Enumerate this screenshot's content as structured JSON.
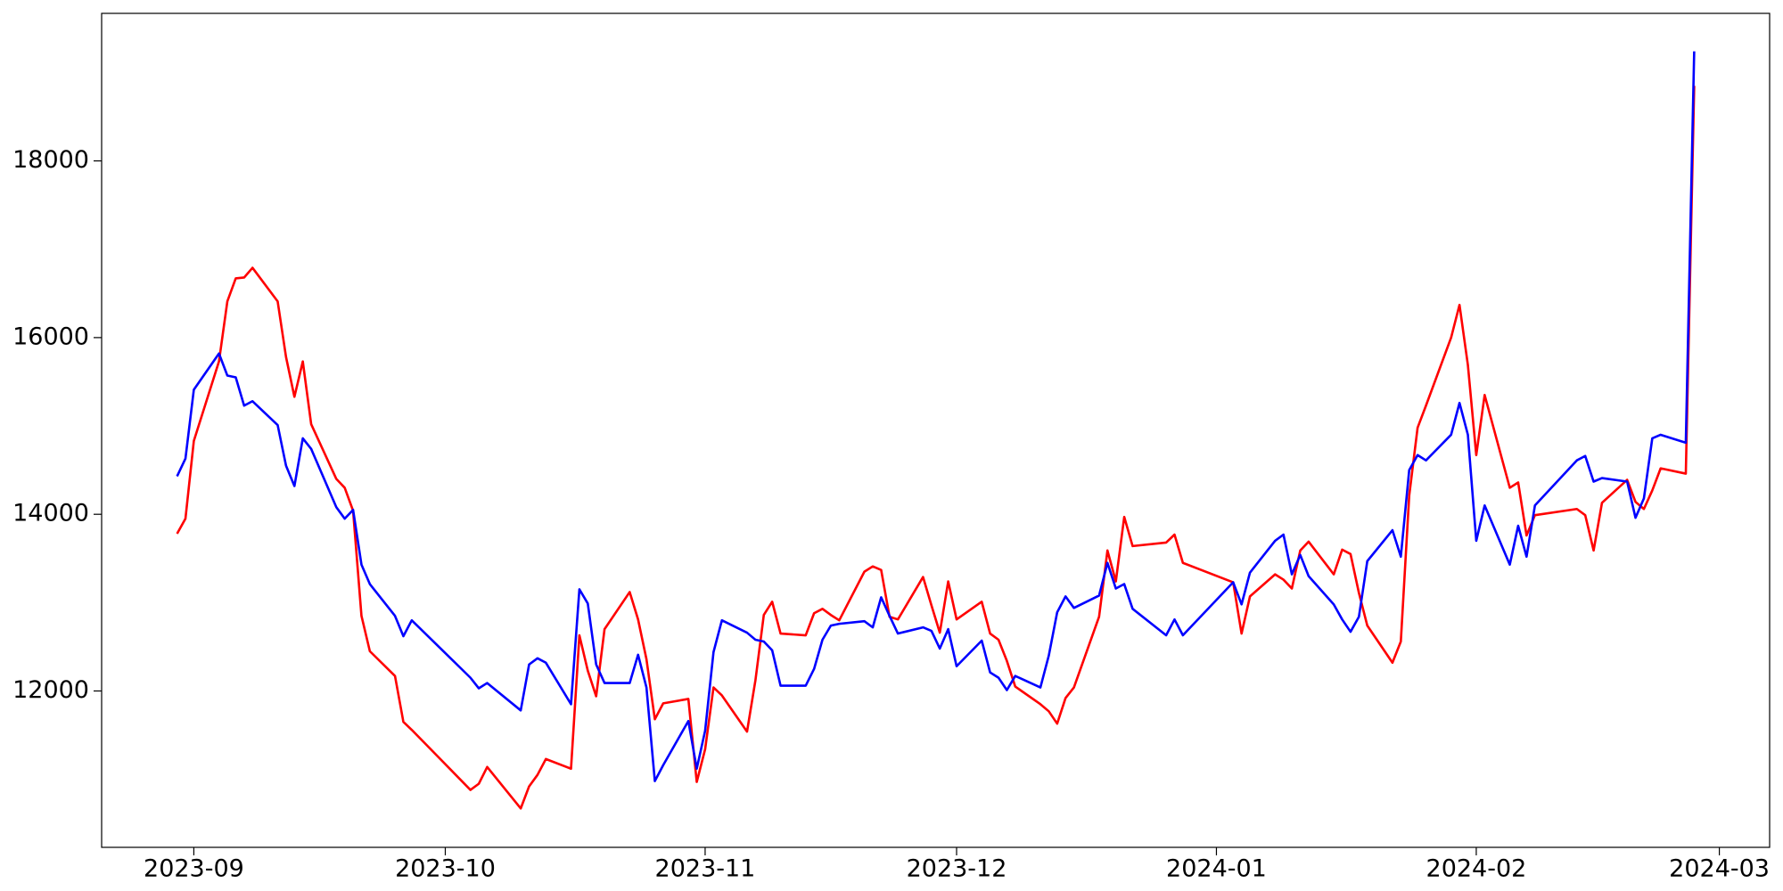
{
  "chart_data": {
    "type": "line",
    "x": [
      "2023-08-30",
      "2023-08-31",
      "2023-09-01",
      "2023-09-04",
      "2023-09-05",
      "2023-09-06",
      "2023-09-07",
      "2023-09-08",
      "2023-09-11",
      "2023-09-12",
      "2023-09-13",
      "2023-09-14",
      "2023-09-15",
      "2023-09-18",
      "2023-09-19",
      "2023-09-20",
      "2023-09-21",
      "2023-09-22",
      "2023-09-25",
      "2023-09-26",
      "2023-09-27",
      "2023-10-04",
      "2023-10-05",
      "2023-10-06",
      "2023-10-10",
      "2023-10-11",
      "2023-10-12",
      "2023-10-13",
      "2023-10-16",
      "2023-10-17",
      "2023-10-18",
      "2023-10-19",
      "2023-10-20",
      "2023-10-23",
      "2023-10-24",
      "2023-10-25",
      "2023-10-26",
      "2023-10-27",
      "2023-10-30",
      "2023-10-31",
      "2023-11-01",
      "2023-11-02",
      "2023-11-03",
      "2023-11-06",
      "2023-11-07",
      "2023-11-08",
      "2023-11-09",
      "2023-11-10",
      "2023-11-13",
      "2023-11-14",
      "2023-11-15",
      "2023-11-16",
      "2023-11-17",
      "2023-11-20",
      "2023-11-21",
      "2023-11-22",
      "2023-11-23",
      "2023-11-24",
      "2023-11-27",
      "2023-11-28",
      "2023-11-29",
      "2023-11-30",
      "2023-12-01",
      "2023-12-04",
      "2023-12-05",
      "2023-12-06",
      "2023-12-07",
      "2023-12-08",
      "2023-12-11",
      "2023-12-12",
      "2023-12-13",
      "2023-12-14",
      "2023-12-15",
      "2023-12-18",
      "2023-12-19",
      "2023-12-20",
      "2023-12-21",
      "2023-12-22",
      "2023-12-26",
      "2023-12-27",
      "2023-12-28",
      "2024-01-03",
      "2024-01-04",
      "2024-01-05",
      "2024-01-08",
      "2024-01-09",
      "2024-01-10",
      "2024-01-11",
      "2024-01-12",
      "2024-01-15",
      "2024-01-16",
      "2024-01-17",
      "2024-01-18",
      "2024-01-19",
      "2024-01-22",
      "2024-01-23",
      "2024-01-24",
      "2024-01-25",
      "2024-01-26",
      "2024-01-29",
      "2024-01-30",
      "2024-01-31",
      "2024-02-01",
      "2024-02-02",
      "2024-02-05",
      "2024-02-06",
      "2024-02-07",
      "2024-02-08",
      "2024-02-13",
      "2024-02-14",
      "2024-02-15",
      "2024-02-16",
      "2024-02-19",
      "2024-02-20",
      "2024-02-21",
      "2024-02-22",
      "2024-02-23",
      "2024-02-26",
      "2024-02-27"
    ],
    "series": [
      {
        "color": "#ff0000",
        "values": [
          13780,
          13950,
          14830,
          15730,
          16410,
          16670,
          16680,
          16790,
          16410,
          15780,
          15330,
          15730,
          15020,
          14400,
          14300,
          14040,
          12850,
          12450,
          12170,
          11650,
          11560,
          10880,
          10950,
          11140,
          10670,
          10920,
          11050,
          11230,
          11120,
          12630,
          12230,
          11940,
          12700,
          13120,
          12810,
          12360,
          11680,
          11860,
          11910,
          10970,
          11340,
          12040,
          11950,
          11540,
          12120,
          12860,
          13010,
          12650,
          12630,
          12880,
          12930,
          12860,
          12800,
          13350,
          13410,
          13370,
          12840,
          12810,
          13290,
          12970,
          12660,
          13240,
          12810,
          13010,
          12650,
          12580,
          12340,
          12050,
          11850,
          11770,
          11630,
          11920,
          12040,
          12840,
          13590,
          13240,
          13970,
          13640,
          13680,
          13770,
          13450,
          13230,
          12650,
          13070,
          13320,
          13260,
          13160,
          13590,
          13690,
          13320,
          13600,
          13550,
          13110,
          12740,
          12320,
          12560,
          14210,
          14980,
          15230,
          16000,
          16370,
          15690,
          14670,
          15350,
          14300,
          14360,
          13760,
          13990,
          14060,
          13990,
          13590,
          14130,
          14390,
          14140,
          14060,
          14270,
          14520,
          14460,
          18850
        ]
      },
      {
        "color": "#0000ff",
        "values": [
          14430,
          14630,
          15410,
          15820,
          15570,
          15550,
          15230,
          15280,
          15010,
          14550,
          14320,
          14860,
          14740,
          14080,
          13950,
          14050,
          13430,
          13210,
          12850,
          12620,
          12800,
          12150,
          12030,
          12090,
          11780,
          12300,
          12370,
          12320,
          11850,
          13150,
          12990,
          12300,
          12090,
          12090,
          12410,
          12040,
          10980,
          11160,
          11660,
          11120,
          11550,
          12440,
          12800,
          12660,
          12580,
          12560,
          12460,
          12060,
          12060,
          12250,
          12580,
          12740,
          12760,
          12790,
          12720,
          13060,
          12850,
          12650,
          12720,
          12680,
          12480,
          12700,
          12280,
          12570,
          12210,
          12150,
          12010,
          12170,
          12040,
          12400,
          12890,
          13070,
          12940,
          13080,
          13450,
          13160,
          13210,
          12930,
          12630,
          12810,
          12630,
          13230,
          12980,
          13340,
          13700,
          13770,
          13320,
          13540,
          13300,
          12980,
          12810,
          12670,
          12840,
          13470,
          13820,
          13520,
          14500,
          14670,
          14610,
          14900,
          15260,
          14900,
          13700,
          14100,
          13430,
          13870,
          13520,
          14100,
          14610,
          14660,
          14370,
          14410,
          14370,
          13960,
          14180,
          14860,
          14900,
          14810,
          19240
        ]
      }
    ],
    "xlim": [
      "2023-08-21",
      "2024-03-07"
    ],
    "xticks": [
      {
        "value": "2023-09-01",
        "label": "2023-09"
      },
      {
        "value": "2023-10-01",
        "label": "2023-10"
      },
      {
        "value": "2023-11-01",
        "label": "2023-11"
      },
      {
        "value": "2023-12-01",
        "label": "2023-12"
      },
      {
        "value": "2024-01-01",
        "label": "2024-01"
      },
      {
        "value": "2024-02-01",
        "label": "2024-02"
      },
      {
        "value": "2024-03-01",
        "label": "2024-03"
      }
    ],
    "ylim": [
      10230,
      19670
    ],
    "yticks": [
      12000,
      14000,
      16000,
      18000
    ],
    "grid": false
  }
}
